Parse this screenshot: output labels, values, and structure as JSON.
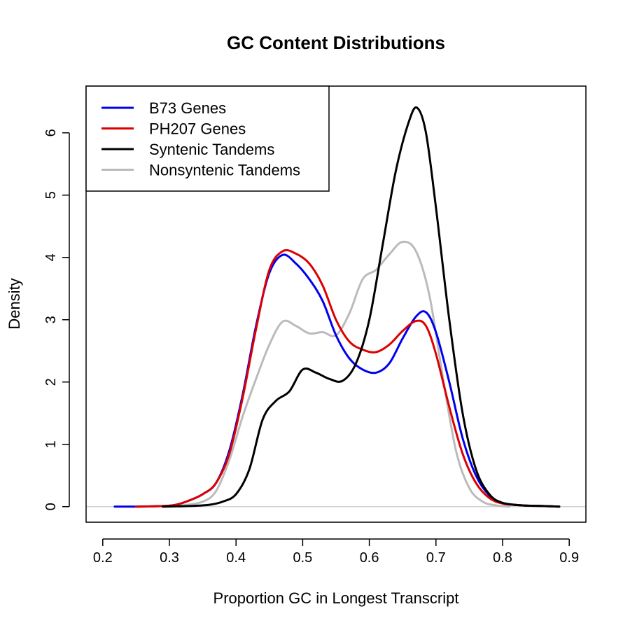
{
  "chart_data": {
    "type": "line",
    "title": "GC Content Distributions",
    "xlabel": "Proportion GC in Longest Transcript",
    "ylabel": "Density",
    "xlim": [
      0.175,
      0.925
    ],
    "ylim": [
      -0.25,
      6.75
    ],
    "x_ticks": [
      "0.2",
      "0.3",
      "0.4",
      "0.5",
      "0.6",
      "0.7",
      "0.8",
      "0.9"
    ],
    "y_ticks": [
      "0",
      "1",
      "2",
      "3",
      "4",
      "5",
      "6"
    ],
    "legend_position": "top-left",
    "zero_line": true,
    "series": [
      {
        "name": "B73 Genes",
        "color": "#0000ee",
        "points": [
          [
            0.218,
            0
          ],
          [
            0.25,
            0
          ],
          [
            0.29,
            0.01
          ],
          [
            0.31,
            0.03
          ],
          [
            0.33,
            0.1
          ],
          [
            0.35,
            0.2
          ],
          [
            0.37,
            0.38
          ],
          [
            0.39,
            0.9
          ],
          [
            0.41,
            1.8
          ],
          [
            0.43,
            2.9
          ],
          [
            0.45,
            3.75
          ],
          [
            0.47,
            4.04
          ],
          [
            0.49,
            3.9
          ],
          [
            0.51,
            3.65
          ],
          [
            0.53,
            3.3
          ],
          [
            0.55,
            2.75
          ],
          [
            0.57,
            2.38
          ],
          [
            0.59,
            2.2
          ],
          [
            0.61,
            2.15
          ],
          [
            0.63,
            2.3
          ],
          [
            0.65,
            2.7
          ],
          [
            0.67,
            3.05
          ],
          [
            0.685,
            3.12
          ],
          [
            0.7,
            2.8
          ],
          [
            0.72,
            2.0
          ],
          [
            0.74,
            1.1
          ],
          [
            0.76,
            0.5
          ],
          [
            0.78,
            0.18
          ],
          [
            0.8,
            0.06
          ],
          [
            0.83,
            0.02
          ],
          [
            0.86,
            0.01
          ],
          [
            0.885,
            0
          ]
        ]
      },
      {
        "name": "PH207 Genes",
        "color": "#dd0000",
        "points": [
          [
            0.25,
            0
          ],
          [
            0.29,
            0.01
          ],
          [
            0.31,
            0.03
          ],
          [
            0.33,
            0.1
          ],
          [
            0.35,
            0.2
          ],
          [
            0.37,
            0.38
          ],
          [
            0.39,
            0.85
          ],
          [
            0.41,
            1.75
          ],
          [
            0.43,
            2.85
          ],
          [
            0.45,
            3.8
          ],
          [
            0.47,
            4.1
          ],
          [
            0.49,
            4.06
          ],
          [
            0.51,
            3.9
          ],
          [
            0.53,
            3.55
          ],
          [
            0.55,
            3.0
          ],
          [
            0.57,
            2.65
          ],
          [
            0.59,
            2.52
          ],
          [
            0.61,
            2.48
          ],
          [
            0.63,
            2.6
          ],
          [
            0.65,
            2.82
          ],
          [
            0.67,
            2.98
          ],
          [
            0.685,
            2.9
          ],
          [
            0.7,
            2.45
          ],
          [
            0.72,
            1.6
          ],
          [
            0.74,
            0.85
          ],
          [
            0.76,
            0.38
          ],
          [
            0.78,
            0.14
          ],
          [
            0.8,
            0.05
          ],
          [
            0.83,
            0.02
          ],
          [
            0.86,
            0.01
          ],
          [
            0.885,
            0
          ]
        ]
      },
      {
        "name": "Syntenic Tandems",
        "color": "#000000",
        "points": [
          [
            0.29,
            0
          ],
          [
            0.33,
            0.01
          ],
          [
            0.36,
            0.03
          ],
          [
            0.38,
            0.08
          ],
          [
            0.4,
            0.2
          ],
          [
            0.42,
            0.6
          ],
          [
            0.44,
            1.4
          ],
          [
            0.46,
            1.7
          ],
          [
            0.48,
            1.85
          ],
          [
            0.5,
            2.2
          ],
          [
            0.52,
            2.15
          ],
          [
            0.54,
            2.05
          ],
          [
            0.56,
            2.02
          ],
          [
            0.58,
            2.3
          ],
          [
            0.6,
            3.0
          ],
          [
            0.62,
            4.2
          ],
          [
            0.64,
            5.4
          ],
          [
            0.66,
            6.2
          ],
          [
            0.672,
            6.4
          ],
          [
            0.685,
            6.0
          ],
          [
            0.7,
            4.8
          ],
          [
            0.72,
            3.0
          ],
          [
            0.74,
            1.5
          ],
          [
            0.76,
            0.6
          ],
          [
            0.78,
            0.2
          ],
          [
            0.8,
            0.06
          ],
          [
            0.83,
            0.02
          ],
          [
            0.86,
            0.01
          ],
          [
            0.885,
            0
          ]
        ]
      },
      {
        "name": "Nonsyntenic Tandems",
        "color": "#bbbbbb",
        "points": [
          [
            0.29,
            0
          ],
          [
            0.32,
            0.02
          ],
          [
            0.35,
            0.08
          ],
          [
            0.37,
            0.25
          ],
          [
            0.39,
            0.75
          ],
          [
            0.41,
            1.45
          ],
          [
            0.43,
            2.05
          ],
          [
            0.45,
            2.6
          ],
          [
            0.47,
            2.97
          ],
          [
            0.49,
            2.9
          ],
          [
            0.51,
            2.78
          ],
          [
            0.53,
            2.8
          ],
          [
            0.55,
            2.75
          ],
          [
            0.57,
            3.1
          ],
          [
            0.59,
            3.65
          ],
          [
            0.61,
            3.8
          ],
          [
            0.63,
            4.05
          ],
          [
            0.65,
            4.25
          ],
          [
            0.67,
            4.1
          ],
          [
            0.69,
            3.4
          ],
          [
            0.71,
            2.1
          ],
          [
            0.73,
            0.9
          ],
          [
            0.75,
            0.3
          ],
          [
            0.77,
            0.08
          ],
          [
            0.79,
            0.02
          ],
          [
            0.81,
            0
          ]
        ]
      }
    ]
  }
}
